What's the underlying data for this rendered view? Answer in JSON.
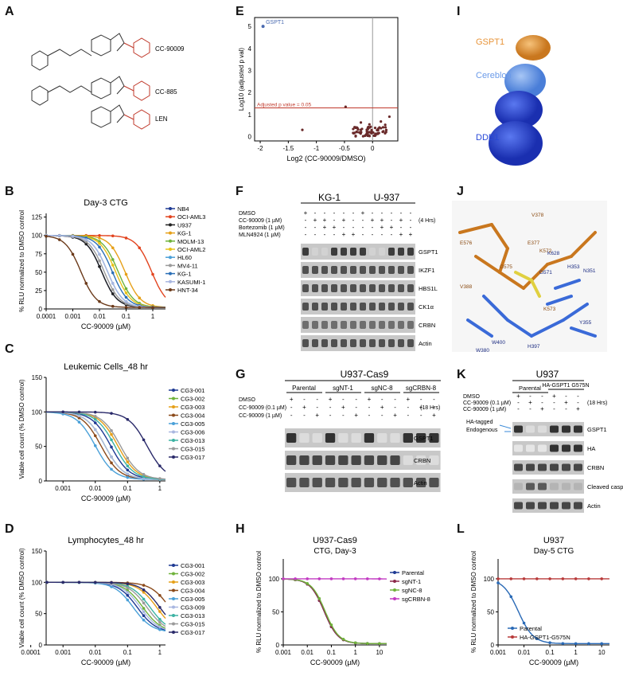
{
  "panels": {
    "A": {
      "label": "A",
      "compounds": [
        "CC-90009",
        "CC-885",
        "LEN"
      ]
    },
    "B": {
      "label": "B",
      "chart_data": {
        "type": "line",
        "title": "Day-3 CTG",
        "xlabel": "CC-90009 (µM)",
        "ylabel": "% RLU normalized to DMSO control",
        "x_ticks": [
          "0.0001",
          "0.001",
          "0.01",
          "0.1",
          "1"
        ],
        "y_ticks": [
          "0",
          "25",
          "50",
          "75",
          "100",
          "125"
        ],
        "xlim": [
          0.0001,
          3
        ],
        "ylim": [
          0,
          130
        ],
        "xscale": "log",
        "series": [
          {
            "name": "NB4",
            "color": "#1f3a93",
            "ic50": 0.012
          },
          {
            "name": "OCI-AML3",
            "color": "#e2431e",
            "ic50": 0.9
          },
          {
            "name": "U937",
            "color": "#222222",
            "ic50": 0.012
          },
          {
            "name": "KG-1",
            "color": "#e6a019",
            "ic50": 0.09
          },
          {
            "name": "MOLM-13",
            "color": "#6fb23b",
            "ic50": 0.05
          },
          {
            "name": "OCI-AML2",
            "color": "#e8c21a",
            "ic50": 0.04
          },
          {
            "name": "HL60",
            "color": "#4aa0d8",
            "ic50": 0.02
          },
          {
            "name": "MV4-11",
            "color": "#9a9a9a",
            "ic50": 0.015
          },
          {
            "name": "KG-1",
            "color": "#2b6fb6",
            "ic50": 0.03
          },
          {
            "name": "KASUMI-1",
            "color": "#a9b7e0",
            "ic50": 0.02
          },
          {
            "name": "HNT-34",
            "color": "#6b3a1a",
            "ic50": 0.002
          }
        ]
      }
    },
    "C": {
      "label": "C",
      "chart_data": {
        "type": "line",
        "title": "Leukemic Cells_48 hr",
        "xlabel": "CC-90009 (µM)",
        "ylabel": "Viable cell count (% DMSO control)",
        "x_ticks": [
          "0.001",
          "0.01",
          "0.1",
          "1"
        ],
        "y_ticks": [
          "0",
          "50",
          "100",
          "150"
        ],
        "xlim": [
          0.0003,
          1.5
        ],
        "ylim": [
          0,
          150
        ],
        "xscale": "log",
        "series": [
          {
            "name": "CG3-001",
            "color": "#1f3a93",
            "ic50": 0.03
          },
          {
            "name": "CG3-002",
            "color": "#6fb23b",
            "ic50": 0.02
          },
          {
            "name": "CG3-003",
            "color": "#e6a019",
            "ic50": 0.05
          },
          {
            "name": "CG3-004",
            "color": "#8b4a1a",
            "ic50": 0.015
          },
          {
            "name": "CG3-005",
            "color": "#4aa0d8",
            "ic50": 0.01
          },
          {
            "name": "CG3-006",
            "color": "#a9b7e0",
            "ic50": 0.02
          },
          {
            "name": "CG3-013",
            "color": "#3db3a3",
            "ic50": 0.04
          },
          {
            "name": "CG3-015",
            "color": "#9a9a9a",
            "ic50": 0.06
          },
          {
            "name": "CG3-017",
            "color": "#2a2a6a",
            "ic50": 0.4
          }
        ]
      }
    },
    "D": {
      "label": "D",
      "chart_data": {
        "type": "line",
        "title": "Lymphocytes_48 hr",
        "xlabel": "CC-90009 (µM)",
        "ylabel": "Viable cell count (% DMSO control)",
        "x_ticks": [
          "0.0001",
          "0.001",
          "0.01",
          "0.1",
          "1"
        ],
        "y_ticks": [
          "0",
          "50",
          "100",
          "150"
        ],
        "xlim": [
          0.0003,
          1.5
        ],
        "ylim": [
          0,
          150
        ],
        "xscale": "log",
        "series": [
          {
            "name": "CG3-001",
            "color": "#1f3a93",
            "ic50": 0.2
          },
          {
            "name": "CG3-002",
            "color": "#6fb23b",
            "ic50": 0.3
          },
          {
            "name": "CG3-003",
            "color": "#e6a019",
            "ic50": 0.8
          },
          {
            "name": "CG3-004",
            "color": "#8b4a1a",
            "ic50": 2
          },
          {
            "name": "CG3-005",
            "color": "#4aa0d8",
            "ic50": 0.15
          },
          {
            "name": "CG3-009",
            "color": "#a9b7e0",
            "ic50": 0.25
          },
          {
            "name": "CG3-013",
            "color": "#3db3a3",
            "ic50": 0.5
          },
          {
            "name": "CG3-015",
            "color": "#9a9a9a",
            "ic50": 0.4
          },
          {
            "name": "CG3-017",
            "color": "#2a2a6a",
            "ic50": 1
          }
        ]
      }
    },
    "E": {
      "label": "E",
      "chart_data": {
        "type": "scatter",
        "xlabel": "Log2 (CC-90009/DMSO)",
        "ylabel": "Log10 (adjusted p val)",
        "x_ticks": [
          "-2",
          "-1.5",
          "-1",
          "-0.5",
          "0"
        ],
        "y_ticks": [
          "0",
          "1",
          "2",
          "3",
          "4",
          "5"
        ],
        "xlim": [
          -2.1,
          0.45
        ],
        "ylim": [
          -0.2,
          5.4
        ],
        "annotation": "GSPT1",
        "threshold_label": "Adjusted p value = 0.05",
        "threshold": 1.3
      }
    },
    "F": {
      "label": "F",
      "cell_lines": [
        "KG-1",
        "U-937"
      ],
      "treatments": [
        {
          "name": "DMSO",
          "signs": [
            "+",
            "-",
            "-",
            "-",
            "-",
            "-",
            "+",
            "-",
            "-",
            "-",
            "-",
            "-"
          ]
        },
        {
          "name": "CC-90009 (1 µM)",
          "signs": [
            "-",
            "+",
            "+",
            "-",
            "+",
            "-",
            "-",
            "+",
            "+",
            "-",
            "+",
            "-"
          ]
        },
        {
          "name": "Bortezomib (1 µM)",
          "signs": [
            "-",
            "-",
            "+",
            "+",
            "-",
            "-",
            "-",
            "-",
            "+",
            "+",
            "-",
            "-"
          ]
        },
        {
          "name": "MLN4924 (1 µM)",
          "signs": [
            "-",
            "-",
            "-",
            "-",
            "+",
            "+",
            "-",
            "-",
            "-",
            "-",
            "+",
            "+"
          ]
        }
      ],
      "time": "(4 Hrs)",
      "proteins": [
        "GSPT1",
        "IKZF1",
        "HBS1L",
        "CK1α",
        "CRBN",
        "Actin"
      ]
    },
    "G": {
      "label": "G",
      "title": "U937-Cas9",
      "groups": [
        "Parental",
        "sgNT-1",
        "sgNC-8",
        "sgCRBN-8"
      ],
      "treatments": [
        {
          "name": "DMSO",
          "signs": [
            "+",
            "-",
            "-",
            "+",
            "-",
            "-",
            "+",
            "-",
            "-",
            "+",
            "-",
            "-"
          ]
        },
        {
          "name": "CC-90009 (0.1 µM)",
          "signs": [
            "-",
            "+",
            "-",
            "-",
            "+",
            "-",
            "-",
            "+",
            "-",
            "-",
            "+",
            "-"
          ]
        },
        {
          "name": "CC-90009 (1 µM)",
          "signs": [
            "-",
            "-",
            "+",
            "-",
            "-",
            "+",
            "-",
            "-",
            "+",
            "-",
            "-",
            "+"
          ]
        }
      ],
      "time": "(18 Hrs)",
      "proteins": [
        "GSPT1",
        "CRBN",
        "Actin"
      ]
    },
    "H": {
      "label": "H",
      "chart_data": {
        "type": "line",
        "title": "U937-Cas9",
        "subtitle": "CTG, Day-3",
        "xlabel": "CC-90009 (µM)",
        "ylabel": "% RLU normalized to DMSO control",
        "x_ticks": [
          "0.001",
          "0.01",
          "0.1",
          "1",
          "10"
        ],
        "y_ticks": [
          "0",
          "50",
          "100"
        ],
        "xlim": [
          0.001,
          20
        ],
        "ylim": [
          0,
          130
        ],
        "xscale": "log",
        "series": [
          {
            "name": "Parental",
            "color": "#1f3a93",
            "ic50": 0.05
          },
          {
            "name": "sgNT-1",
            "color": "#8b2a4a",
            "ic50": 0.05
          },
          {
            "name": "sgNC-8",
            "color": "#6fb23b",
            "ic50": 0.055
          },
          {
            "name": "sgCRBN-8",
            "color": "#c23bc2",
            "ic50": 1000
          }
        ]
      }
    },
    "I": {
      "label": "I",
      "labels": [
        "GSPT1",
        "Cereblon",
        "DDB1"
      ],
      "colors": [
        "#e8953a",
        "#6a9ae8",
        "#2a4ad8"
      ]
    },
    "J": {
      "label": "J",
      "residues": [
        "E377",
        "V378",
        "G575",
        "E576",
        "V388",
        "H353",
        "K628",
        "W380",
        "H397",
        "W400",
        "Y355",
        "K572",
        "K573",
        "N351",
        "G571"
      ]
    },
    "K": {
      "label": "K",
      "title": "U937",
      "groups": [
        "Parental",
        "HA-GSPT1 G575N"
      ],
      "treatments": [
        {
          "name": "DMSO",
          "signs": [
            "+",
            "-",
            "-",
            "+",
            "-",
            "-"
          ]
        },
        {
          "name": "CC-90009 (0.1 µM)",
          "signs": [
            "-",
            "+",
            "-",
            "-",
            "+",
            "-"
          ]
        },
        {
          "name": "CC-90009 (1 µM)",
          "signs": [
            "-",
            "-",
            "+",
            "-",
            "-",
            "+"
          ]
        }
      ],
      "time": "(18 Hrs)",
      "proteins": [
        "GSPT1",
        "HA",
        "CRBN",
        "Cleaved caspase 3",
        "Actin"
      ],
      "arrow_labels": [
        "HA-tagged",
        "Endogenous"
      ]
    },
    "L": {
      "label": "L",
      "chart_data": {
        "type": "line",
        "title": "U937",
        "subtitle": "Day-5 CTG",
        "xlabel": "CC-90009 (µM)",
        "ylabel": "% RLU normalized to DMSO control",
        "x_ticks": [
          "0.001",
          "0.01",
          "0.1",
          "1",
          "10"
        ],
        "y_ticks": [
          "0",
          "50",
          "100"
        ],
        "xlim": [
          0.001,
          20
        ],
        "ylim": [
          0,
          130
        ],
        "xscale": "log",
        "series": [
          {
            "name": "Parental",
            "color": "#2a6ab6",
            "ic50": 0.006
          },
          {
            "name": "HA-GSPT1-G575N",
            "color": "#b83a3a",
            "ic50": 100000
          }
        ]
      }
    }
  }
}
